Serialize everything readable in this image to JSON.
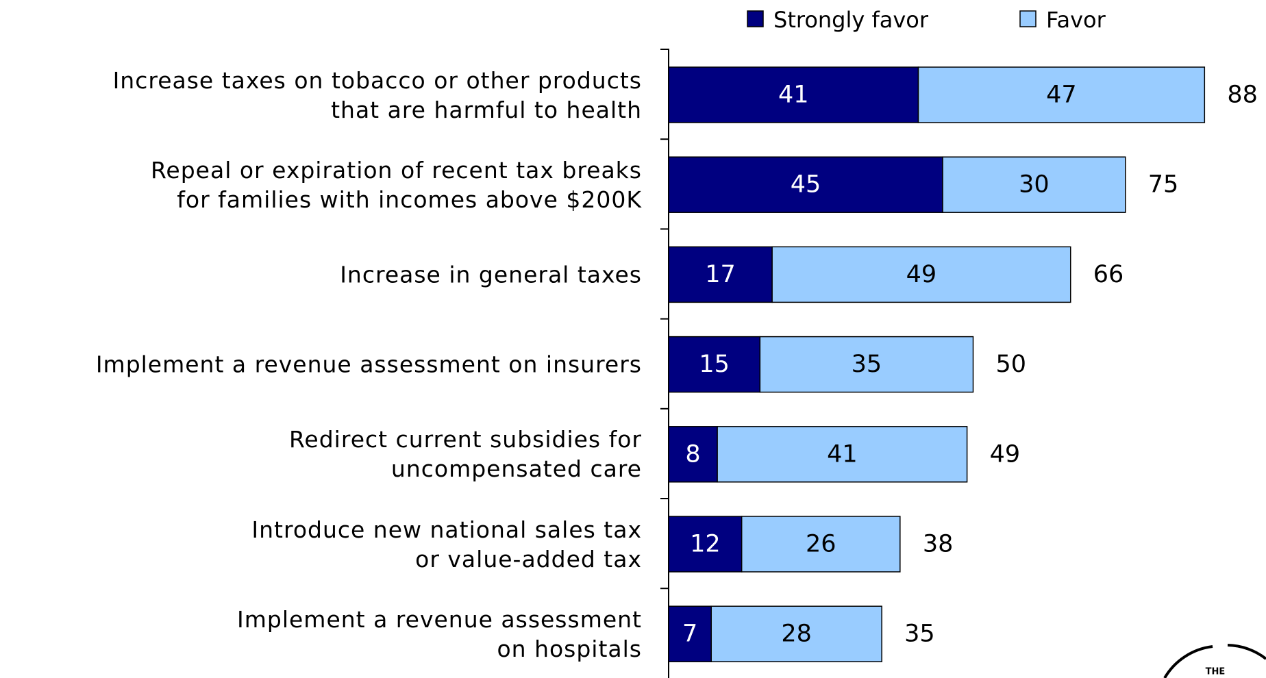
{
  "chart_data": {
    "type": "stacked-bar-horizontal",
    "categories": [
      "Increase taxes on tobacco or other products\nthat are harmful to health",
      "Repeal or expiration of recent tax breaks\nfor families with incomes above $200K",
      "Increase in general taxes",
      "Implement a revenue assessment on insurers",
      "Redirect current subsidies for\nuncompensated care",
      "Introduce new national sales tax\nor value-added tax",
      "Implement a revenue assessment\non hospitals"
    ],
    "series": [
      {
        "name": "Strongly favor",
        "color": "#000080",
        "label_color": "#ffffff",
        "values": [
          41,
          45,
          17,
          15,
          8,
          12,
          7
        ]
      },
      {
        "name": "Favor",
        "color": "#99ccff",
        "label_color": "#000000",
        "values": [
          47,
          30,
          49,
          35,
          41,
          26,
          28
        ]
      }
    ],
    "totals": [
      88,
      75,
      66,
      50,
      49,
      38,
      35
    ],
    "legend": "top",
    "logo_text": "THE"
  }
}
